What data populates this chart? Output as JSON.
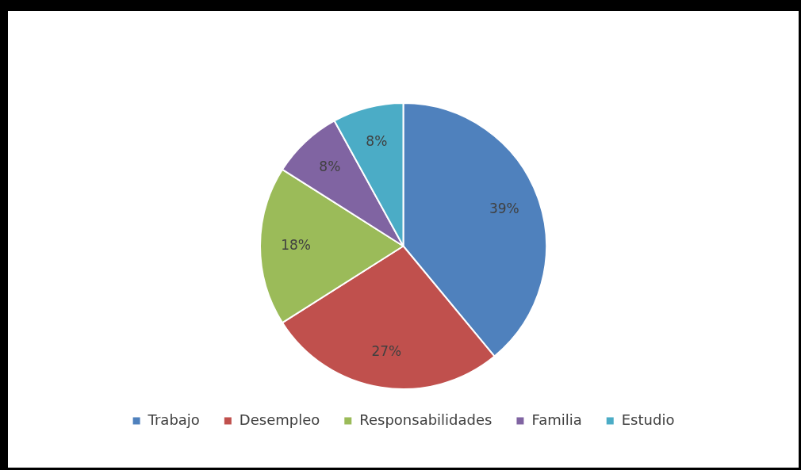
{
  "chart_data": {
    "type": "pie",
    "categories": [
      "Trabajo",
      "Desempleo",
      "Responsabilidades",
      "Familia",
      "Estudio"
    ],
    "values": [
      39,
      27,
      18,
      8,
      8
    ],
    "colors": [
      "#4f81bd",
      "#c0504d",
      "#9bbb59",
      "#8064a2",
      "#4bacc6"
    ],
    "value_labels": [
      "39%",
      "27%",
      "18%",
      "8%",
      "8%"
    ],
    "legend": "bottom"
  }
}
